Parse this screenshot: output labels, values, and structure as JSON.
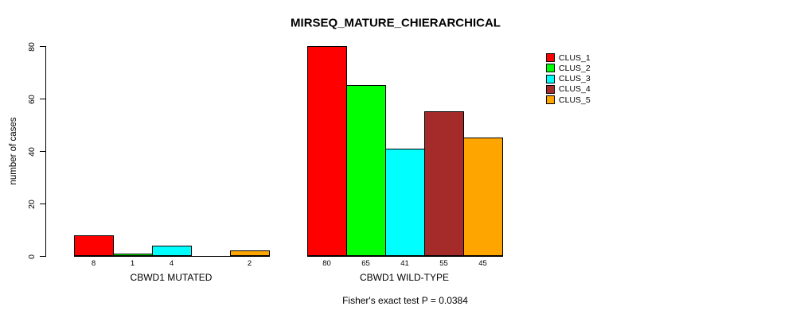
{
  "chart_data": {
    "type": "bar",
    "title": "MIRSEQ_MATURE_CHIERARCHICAL",
    "ylabel": "number of cases",
    "xlabel": "",
    "ylim": [
      0,
      80
    ],
    "yticks": [
      0,
      20,
      40,
      60,
      80
    ],
    "grid": false,
    "legend_position": "top-right",
    "series": [
      {
        "name": "CLUS_1",
        "color": "#ff0000"
      },
      {
        "name": "CLUS_2",
        "color": "#00ff00"
      },
      {
        "name": "CLUS_3",
        "color": "#00ffff"
      },
      {
        "name": "CLUS_4",
        "color": "#a52a2a"
      },
      {
        "name": "CLUS_5",
        "color": "#ffa500"
      }
    ],
    "groups": [
      {
        "label": "CBWD1 MUTATED",
        "values": [
          8,
          1,
          4,
          0,
          2
        ],
        "bar_labels": [
          "8",
          "1",
          "4",
          "",
          "2"
        ]
      },
      {
        "label": "CBWD1 WILD-TYPE",
        "values": [
          80,
          65,
          41,
          55,
          45
        ],
        "bar_labels": [
          "80",
          "65",
          "41",
          "55",
          "45"
        ]
      }
    ],
    "annotation": "Fisher's exact test P = 0.0384"
  }
}
